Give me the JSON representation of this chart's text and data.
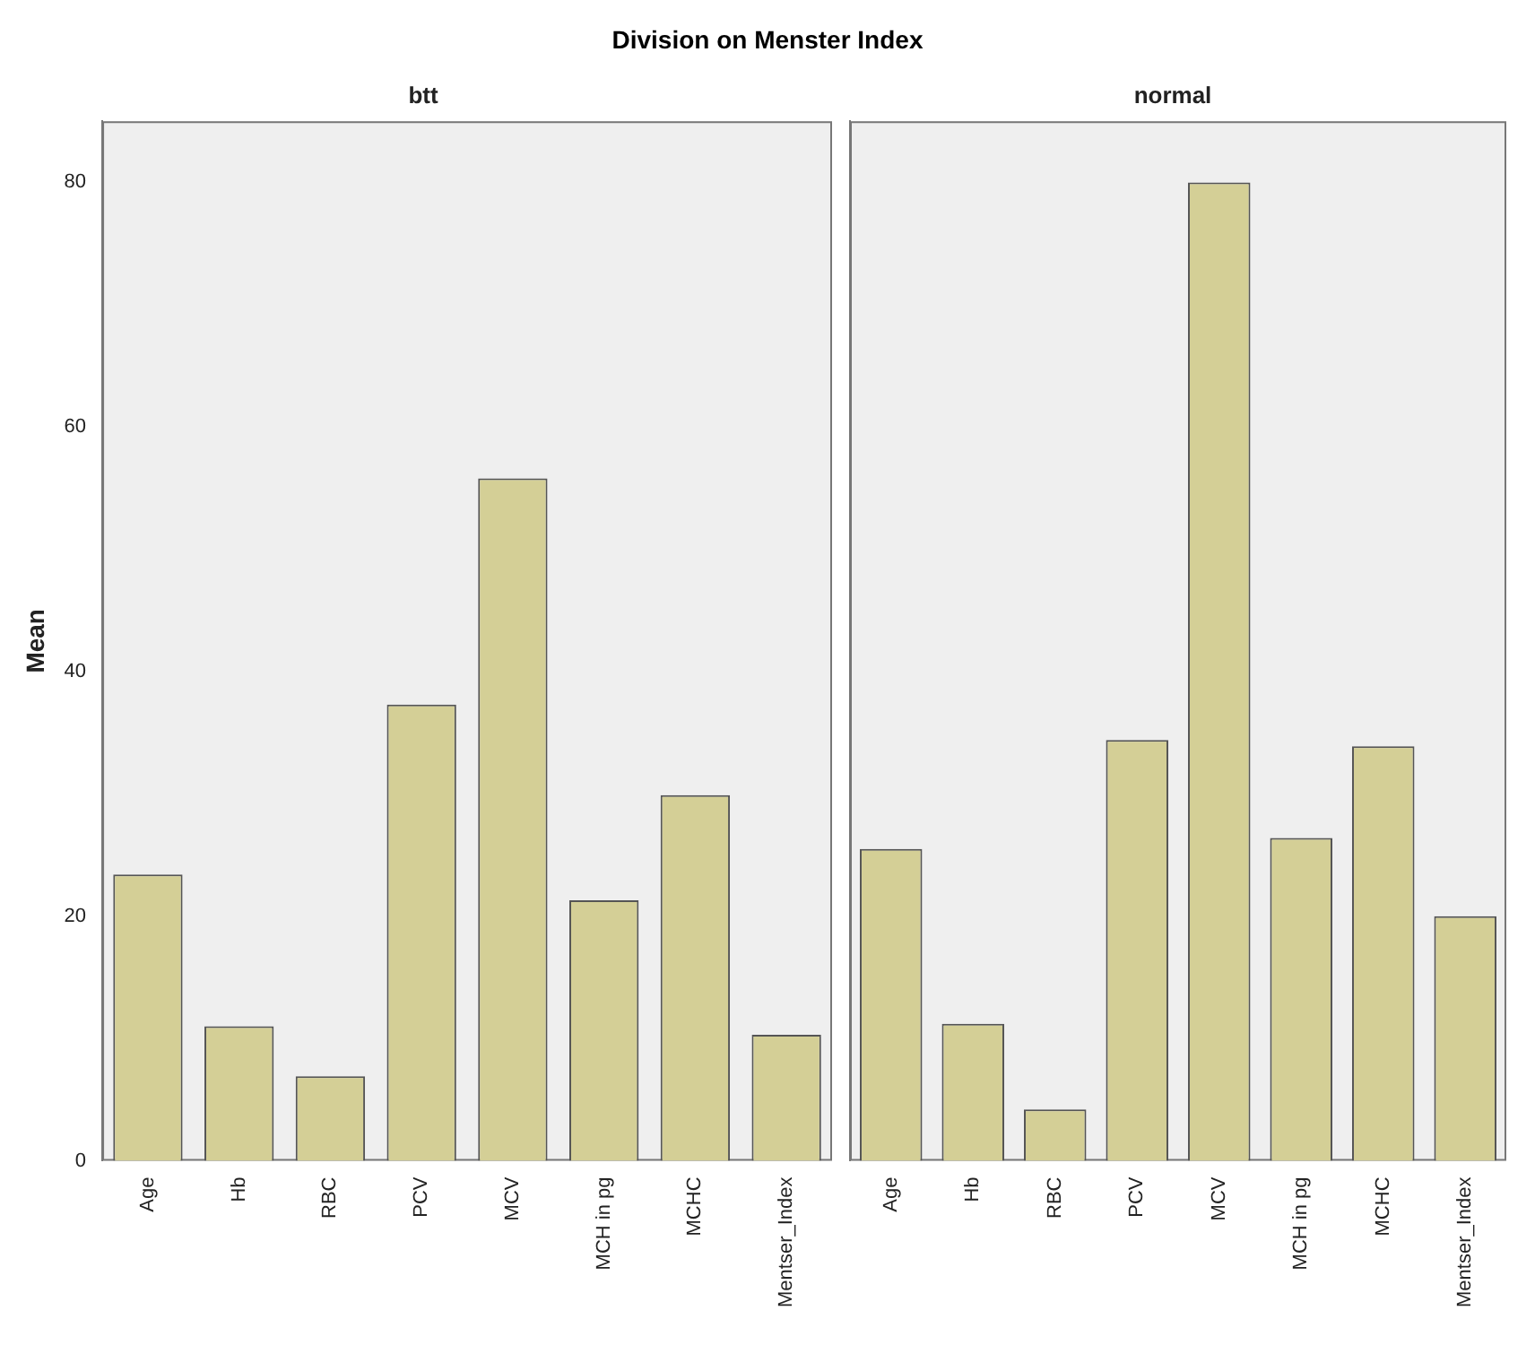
{
  "chart_data": [
    {
      "type": "bar",
      "title": "Division on Menster Index",
      "subtitle": "btt",
      "ylabel": "Mean",
      "categories": [
        "Age",
        "Hb",
        "RBC",
        "PCV",
        "MCV",
        "MCH in pg",
        "MCHC",
        "Mentser_Index"
      ],
      "values": [
        23.4,
        11.0,
        6.9,
        37.3,
        55.8,
        21.3,
        29.9,
        10.3
      ],
      "color": "#d4cf96",
      "ylim": [
        0,
        85
      ],
      "yticks": [
        0,
        20,
        40,
        60,
        80
      ],
      "grid": false
    },
    {
      "type": "bar",
      "subtitle": "normal",
      "categories": [
        "Age",
        "Hb",
        "RBC",
        "PCV",
        "MCV",
        "MCH in pg",
        "MCHC",
        "Mentser_Index"
      ],
      "values": [
        25.5,
        11.2,
        4.2,
        34.4,
        80.0,
        26.4,
        33.9,
        20.0
      ],
      "color": "#d4cf96",
      "ylim": [
        0,
        85
      ],
      "yticks": [
        0,
        20,
        40,
        60,
        80
      ],
      "grid": false,
      "tick_labels": "x"
    }
  ]
}
